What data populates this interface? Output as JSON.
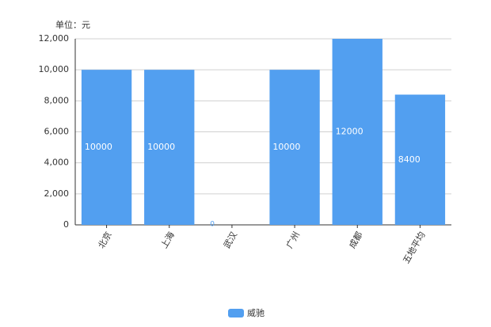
{
  "chart_data": {
    "type": "bar",
    "unit_label": "单位：元",
    "categories": [
      "北京",
      "上海",
      "武汉",
      "广州",
      "成都",
      "五地平均"
    ],
    "series": [
      {
        "name": "威驰",
        "color": "#529ff0",
        "values": [
          10000,
          10000,
          0,
          10000,
          12000,
          8400
        ]
      }
    ],
    "ylim": [
      0,
      12000
    ],
    "yticks": [
      0,
      {
        "value": 2000,
        "label": "2,000"
      },
      {
        "value": 4000,
        "label": "4,000"
      },
      {
        "value": 6000,
        "label": "6,000"
      },
      {
        "value": 8000,
        "label": "8,000"
      },
      {
        "value": 10000,
        "label": "10,000"
      },
      {
        "value": 12000,
        "label": "12,000"
      }
    ],
    "grid": true,
    "legend": "bottom"
  }
}
